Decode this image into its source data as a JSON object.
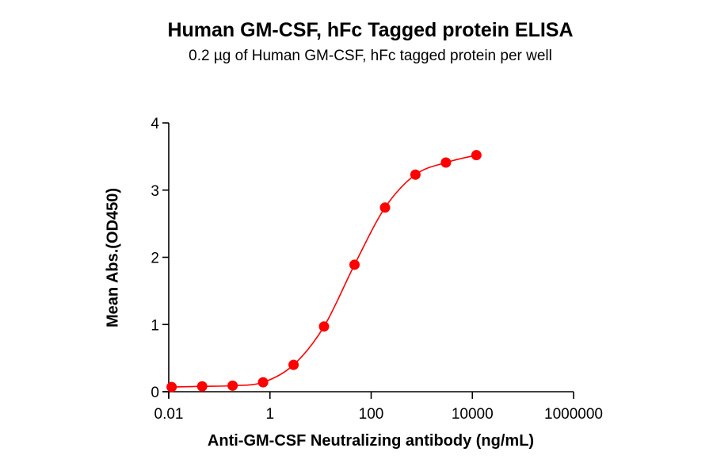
{
  "chart_data": {
    "type": "scatter",
    "title": "Human GM-CSF, hFc Tagged protein ELISA",
    "subtitle": "0.2 µg of Human GM-CSF, hFc tagged protein per well",
    "xlabel": "Anti-GM-CSF Neutralizing antibody (ng/mL)",
    "ylabel": "Mean Abs.(OD450)",
    "xscale": "log",
    "xlim": [
      0.01,
      1000000
    ],
    "ylim": [
      0,
      4
    ],
    "x_ticks": [
      "0.01",
      "1",
      "100",
      "10000",
      "1000000"
    ],
    "y_ticks": [
      "0",
      "1",
      "2",
      "3",
      "4"
    ],
    "grid": false,
    "legend": null,
    "series": [
      {
        "name": "Anti-GM-CSF Neutralizing antibody",
        "color": "#ff0000",
        "fit": "sigmoidal 4PL curve",
        "x": [
          0.0114,
          0.0458,
          0.183,
          0.732,
          2.93,
          11.7,
          46.9,
          188,
          750,
          3000,
          12000
        ],
        "y": [
          0.07,
          0.08,
          0.09,
          0.14,
          0.4,
          0.97,
          1.89,
          2.74,
          3.23,
          3.41,
          3.52
        ]
      }
    ]
  }
}
